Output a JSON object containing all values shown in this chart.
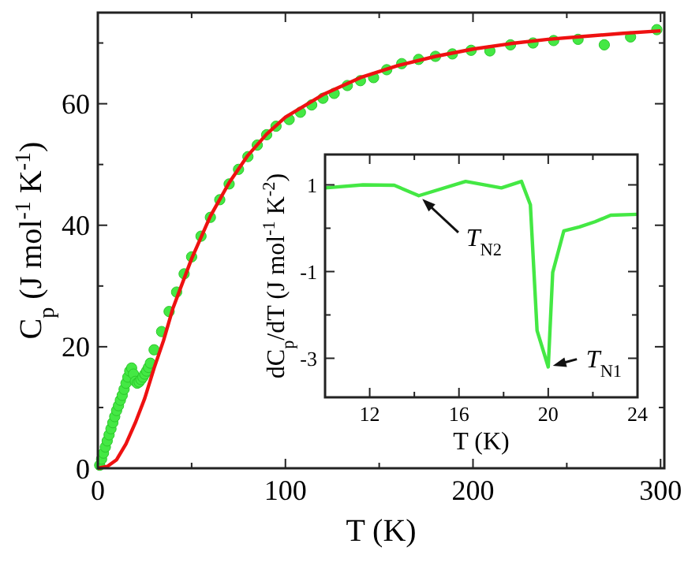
{
  "chart_data": [
    {
      "type": "scatter",
      "xlabel": "T (K)",
      "ylabel": "C$_{p}$ (J mol$^{-1}$ K$^{-1}$)",
      "xlim": [
        0,
        302
      ],
      "ylim": [
        0,
        75
      ],
      "xticks": [
        0,
        {
          "value": 50,
          "label": null
        },
        100,
        {
          "value": 150,
          "label": null
        },
        200,
        {
          "value": 250,
          "label": null
        },
        300
      ],
      "yticks": [
        0,
        {
          "value": 10,
          "label": null
        },
        20,
        {
          "value": 30,
          "label": null
        },
        40,
        {
          "value": 50,
          "label": null
        },
        60,
        {
          "value": 70,
          "label": null
        }
      ],
      "grid": false,
      "series": [
        {
          "marker": "circle",
          "color": "#44e844",
          "x": [
            1,
            2,
            3,
            4,
            5,
            6,
            7,
            8,
            9,
            10,
            11,
            12,
            13,
            14,
            15,
            16,
            17,
            18,
            19,
            20,
            21,
            22,
            23,
            24,
            25,
            26,
            27,
            28,
            30,
            34,
            38,
            42,
            46,
            50,
            55,
            60,
            65,
            70,
            75,
            80,
            85,
            90,
            95,
            102,
            108,
            114,
            120,
            126,
            133,
            140,
            147,
            154,
            162,
            171,
            180,
            189,
            199,
            209,
            220,
            232,
            243,
            256,
            270,
            284,
            298
          ],
          "values": [
            0.5,
            1.5,
            2.5,
            3.5,
            4.5,
            5.5,
            6.5,
            7.5,
            8.5,
            9.5,
            10.3,
            11.2,
            12,
            13,
            14,
            15,
            16,
            16.5,
            15.5,
            14.3,
            14,
            14.2,
            14.6,
            15,
            15.5,
            16,
            16.6,
            17.3,
            19.5,
            22.5,
            25.8,
            29,
            32,
            34.8,
            38.2,
            41.3,
            44.2,
            46.8,
            49.2,
            51.3,
            53.2,
            54.9,
            56.3,
            57.4,
            58.6,
            59.8,
            60.9,
            61.7,
            63,
            63.8,
            64.3,
            65.6,
            66.6,
            67.3,
            67.8,
            68.2,
            68.8,
            68.7,
            69.7,
            70,
            70.4,
            70.6,
            69.7,
            71,
            72.2
          ]
        },
        {
          "type": "line",
          "color": "#ee1111",
          "x": [
            0,
            5,
            10,
            15,
            20,
            25,
            30,
            35,
            40,
            50,
            60,
            70,
            80,
            90,
            100,
            120,
            140,
            160,
            180,
            200,
            220,
            240,
            260,
            280,
            300
          ],
          "values": [
            0,
            0.3,
            1.4,
            4,
            7.5,
            11.5,
            16.5,
            21,
            26.3,
            34.5,
            41.5,
            47,
            51.5,
            55,
            57.8,
            61.5,
            64.3,
            66.3,
            67.8,
            69,
            69.9,
            70.6,
            71.1,
            71.6,
            72
          ]
        }
      ]
    },
    {
      "type": "line",
      "xlabel": "T (K)",
      "ylabel": "dC$_{p}$/dT (J mol$^{-1}$ K$^{-2}$)",
      "xlim": [
        10,
        24
      ],
      "ylim": [
        -3.9,
        1.7
      ],
      "xticks": [
        12,
        {
          "value": 14,
          "label": null
        },
        16,
        {
          "value": 18,
          "label": null
        },
        20,
        {
          "value": 22,
          "label": null
        },
        24
      ],
      "yticks": [
        1,
        {
          "value": 0,
          "label": null
        },
        -1,
        {
          "value": -2,
          "label": null
        },
        -3
      ],
      "grid": false,
      "annotations": [
        {
          "text": "T$_{N2}$",
          "x": 14.2,
          "y": 0.75
        },
        {
          "text": "T$_{N1}$",
          "x": 20,
          "y": -3.2
        }
      ],
      "series": [
        {
          "color": "#44e844",
          "x": [
            10,
            11.7,
            13.1,
            14.2,
            16.3,
            17.9,
            18.8,
            19.2,
            19.5,
            20,
            20.2,
            20.7,
            21.4,
            22.1,
            22.8,
            24
          ],
          "values": [
            0.93,
            1,
            0.99,
            0.75,
            1.08,
            0.93,
            1.08,
            0.54,
            -2.36,
            -3.2,
            -1.02,
            -0.06,
            0.03,
            0.15,
            0.3,
            0.32
          ]
        }
      ]
    }
  ]
}
